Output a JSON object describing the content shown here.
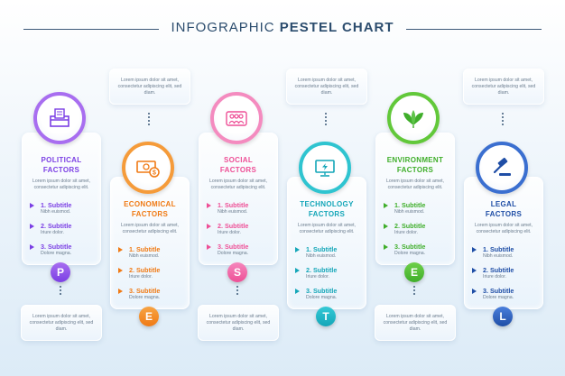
{
  "title_light": "INFOGRAPHIC ",
  "title_bold": "PESTEL CHART",
  "note_text": "Lorem ipsum dolor sit amet, consectetur adipiscing elit, sed diam.",
  "desc_text": "Lorem ipsum dolor sit amet, consectetur adipiscing elit.",
  "factors": [
    {
      "title_line1": "POLITICAL",
      "title_line2": "FACTORS",
      "letter": "P",
      "color": "#7b3fe4",
      "circle_color": "#a86ef0",
      "icon": "ballot-box-icon",
      "subtitles": [
        {
          "label": "1. Subtitle",
          "desc": "Nibh euismod."
        },
        {
          "label": "2. Subtitle",
          "desc": "Iriure dolor."
        },
        {
          "label": "3. Subtitle",
          "desc": "Dolore magna."
        }
      ]
    },
    {
      "title_line1": "ECONOMICAL",
      "title_line2": "FACTORS",
      "letter": "E",
      "color": "#f07a14",
      "circle_color": "#f59b3a",
      "icon": "money-icon",
      "subtitles": [
        {
          "label": "1. Subtitle",
          "desc": "Nibh euismod."
        },
        {
          "label": "2. Subtitle",
          "desc": "Iriure dolor."
        },
        {
          "label": "3. Subtitle",
          "desc": "Dolore magna."
        }
      ]
    },
    {
      "title_line1": "SOCIAL",
      "title_line2": "FACTORS",
      "letter": "S",
      "color": "#ee4f96",
      "circle_color": "#f48bbf",
      "icon": "people-icon",
      "subtitles": [
        {
          "label": "1. Subtitle",
          "desc": "Nibh euismod."
        },
        {
          "label": "2. Subtitle",
          "desc": "Iriure dolor."
        },
        {
          "label": "3. Subtitle",
          "desc": "Dolore magna."
        }
      ]
    },
    {
      "title_line1": "TECHNOLOGY",
      "title_line2": "FACTORS",
      "letter": "T",
      "color": "#14a6b8",
      "circle_color": "#2fc4d0",
      "icon": "monitor-icon",
      "subtitles": [
        {
          "label": "1. Subtitle",
          "desc": "Nibh euismod."
        },
        {
          "label": "2. Subtitle",
          "desc": "Iriure dolor."
        },
        {
          "label": "3. Subtitle",
          "desc": "Dolore magna."
        }
      ]
    },
    {
      "title_line1": "ENVIRONMENT",
      "title_line2": "FACTORS",
      "letter": "E",
      "color": "#3fae2a",
      "circle_color": "#62c83a",
      "icon": "leaf-icon",
      "subtitles": [
        {
          "label": "1. Subtitle",
          "desc": "Nibh euismod."
        },
        {
          "label": "2. Subtitle",
          "desc": "Iriure dolor."
        },
        {
          "label": "3. Subtitle",
          "desc": "Dolore magna."
        }
      ]
    },
    {
      "title_line1": "LEGAL",
      "title_line2": "FACTORS",
      "letter": "L",
      "color": "#1f4ea6",
      "circle_color": "#3b6fd0",
      "icon": "gavel-icon",
      "subtitles": [
        {
          "label": "1. Subtitle",
          "desc": "Nibh euismod."
        },
        {
          "label": "2. Subtitle",
          "desc": "Iriure dolor."
        },
        {
          "label": "3. Subtitle",
          "desc": "Dolore magna."
        }
      ]
    }
  ]
}
